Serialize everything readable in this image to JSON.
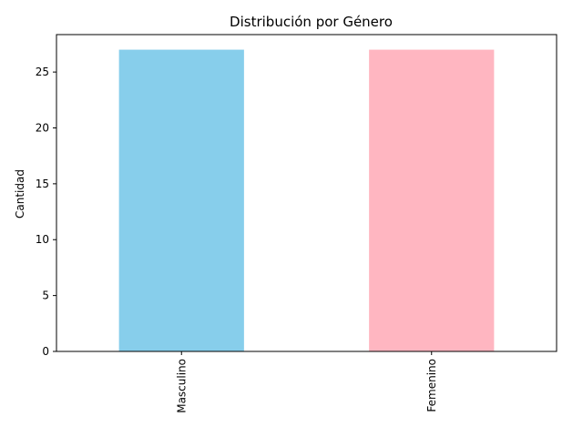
{
  "chart_data": {
    "type": "bar",
    "title": "Distribución por Género",
    "xlabel": "",
    "ylabel": "Cantidad",
    "categories": [
      "Masculino",
      "Femenino"
    ],
    "values": [
      27,
      27
    ],
    "colors": [
      "#87CEEB",
      "#FFB6C1"
    ],
    "ylim": [
      0,
      28.35
    ],
    "yticks": [
      0,
      5,
      10,
      15,
      20,
      25
    ],
    "xtick_rotation": "vertical",
    "grid": false,
    "legend": "none"
  }
}
